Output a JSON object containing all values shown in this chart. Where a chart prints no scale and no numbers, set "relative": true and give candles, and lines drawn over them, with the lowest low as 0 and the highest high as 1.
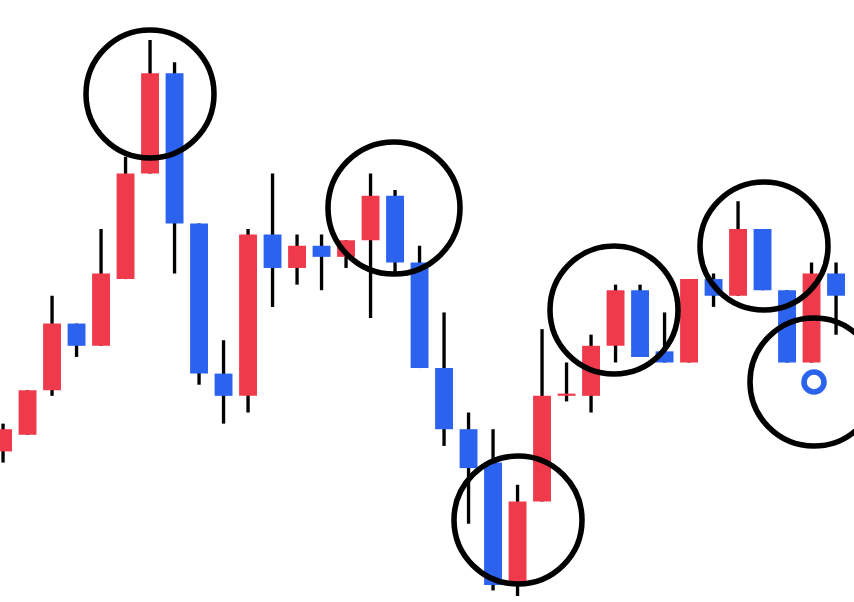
{
  "chart_data": {
    "type": "candlestick",
    "relative": true,
    "categories": [
      null,
      null,
      null,
      null,
      null,
      null,
      null,
      null,
      null,
      null,
      null,
      null,
      null,
      null,
      null,
      null,
      null,
      null,
      null,
      null,
      null,
      null,
      null,
      null,
      null,
      null,
      null,
      null,
      null,
      null,
      null,
      null,
      null,
      null,
      null
    ],
    "ohlc": [
      [
        0.26,
        0.31,
        0.24,
        0.3
      ],
      [
        0.29,
        0.37,
        0.29,
        0.37
      ],
      [
        0.37,
        0.54,
        0.36,
        0.49
      ],
      [
        0.49,
        0.49,
        0.43,
        0.45
      ],
      [
        0.45,
        0.66,
        0.45,
        0.58
      ],
      [
        0.57,
        0.79,
        0.57,
        0.76
      ],
      [
        0.76,
        1,
        0.76,
        0.94
      ],
      [
        0.94,
        0.96,
        0.58,
        0.67
      ],
      [
        0.67,
        0.67,
        0.38,
        0.4
      ],
      [
        0.4,
        0.46,
        0.31,
        0.36
      ],
      [
        0.36,
        0.66,
        0.33,
        0.65
      ],
      [
        0.65,
        0.76,
        0.52,
        0.59
      ],
      [
        0.59,
        0.65,
        0.56,
        0.63
      ],
      [
        0.63,
        0.65,
        0.55,
        0.61
      ],
      [
        0.61,
        0.64,
        0.59,
        0.64
      ],
      [
        0.64,
        0.76,
        0.5,
        0.72
      ],
      [
        0.72,
        0.73,
        0.58,
        0.6
      ],
      [
        0.6,
        0.63,
        0.41,
        0.41
      ],
      [
        0.41,
        0.51,
        0.27,
        0.3
      ],
      [
        0.3,
        0.33,
        0.13,
        0.23
      ],
      [
        0.24,
        0.3,
        0.01,
        0.02
      ],
      [
        0.02,
        0.2,
        0,
        0.17
      ],
      [
        0.17,
        0.48,
        0.17,
        0.36
      ],
      [
        0.36,
        0.42,
        0.35,
        0.36
      ],
      [
        0.36,
        0.47,
        0.33,
        0.45
      ],
      [
        0.45,
        0.56,
        0.42,
        0.55
      ],
      [
        0.55,
        0.56,
        0.43,
        0.43
      ],
      [
        0.44,
        0.51,
        0.42,
        0.42
      ],
      [
        0.42,
        0.57,
        0.42,
        0.57
      ],
      [
        0.57,
        0.58,
        0.52,
        0.54
      ],
      [
        0.54,
        0.71,
        0.54,
        0.66
      ],
      [
        0.66,
        0.66,
        0.55,
        0.55
      ],
      [
        0.55,
        0.55,
        0.42,
        0.42
      ],
      [
        0.42,
        0.6,
        0.42,
        0.58
      ],
      [
        0.58,
        0.6,
        0.47,
        0.54
      ]
    ],
    "colors": [
      "#ef3a4c",
      "#ef3a4c",
      "#ef3a4c",
      "#2b62ee",
      "#ef3a4c",
      "#ef3a4c",
      "#ef3a4c",
      "#2b62ee",
      "#2b62ee",
      "#2b62ee",
      "#ef3a4c",
      "#2b62ee",
      "#ef3a4c",
      "#2b62ee",
      "#ef3a4c",
      "#ef3a4c",
      "#2b62ee",
      "#2b62ee",
      "#2b62ee",
      "#2b62ee",
      "#2b62ee",
      "#ef3a4c",
      "#ef3a4c",
      "#ef3a4c",
      "#ef3a4c",
      "#ef3a4c",
      "#2b62ee",
      "#2b62ee",
      "#ef3a4c",
      "#2b62ee",
      "#ef3a4c",
      "#2b62ee",
      "#2b62ee",
      "#ef3a4c",
      "#2b62ee"
    ]
  }
}
